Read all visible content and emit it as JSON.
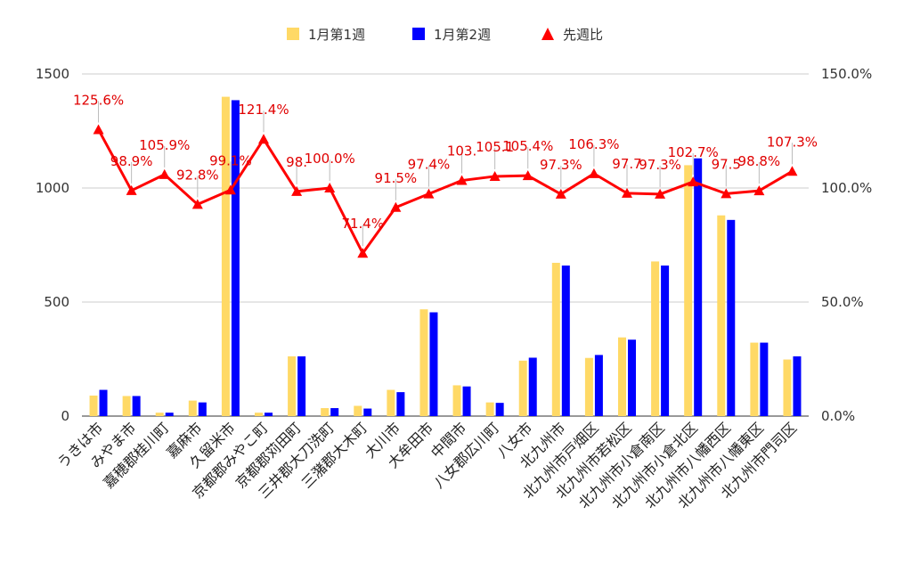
{
  "chart_data": {
    "type": "bar",
    "categories": [
      "うきは市",
      "みやま市",
      "嘉穂郡桂川町",
      "嘉麻市",
      "久留米市",
      "京都郡みやこ町",
      "京都郡苅田町",
      "三井郡大刀洗町",
      "三潴郡大木町",
      "大川市",
      "大牟田市",
      "中間市",
      "八女郡広川町",
      "八女市",
      "北九州市",
      "北九州市戸畑区",
      "北九州市若松区",
      "北九州市小倉南区",
      "北九州市小倉北区",
      "北九州市八幡西区",
      "北九州市八幡東区",
      "北九州市門司区"
    ],
    "series": [
      {
        "name": "1月第1週",
        "axis": "left",
        "kind": "bar",
        "color": "#ffd966",
        "values": [
          90,
          88,
          15,
          68,
          1400,
          15,
          262,
          35,
          45,
          115,
          468,
          135,
          60,
          243,
          672,
          255,
          345,
          678,
          1100,
          880,
          322,
          248
        ]
      },
      {
        "name": "1月第2週",
        "axis": "left",
        "kind": "bar",
        "color": "#0000ff",
        "values": [
          115,
          88,
          15,
          60,
          1385,
          15,
          262,
          35,
          33,
          105,
          455,
          130,
          58,
          256,
          660,
          268,
          335,
          660,
          1130,
          860,
          322,
          262
        ]
      },
      {
        "name": "先週比",
        "axis": "right",
        "kind": "line",
        "color": "#ff0000",
        "marker": "triangle",
        "values": [
          125.6,
          98.9,
          105.9,
          92.8,
          99.1,
          121.4,
          98.5,
          100.0,
          71.4,
          91.5,
          97.4,
          103.3,
          105.1,
          105.4,
          97.3,
          106.3,
          97.7,
          97.3,
          102.7,
          97.5,
          98.8,
          107.3
        ],
        "labels": [
          "125.6%",
          "98.9%",
          "105.9%",
          "92.8%",
          "99.1%",
          "121.4%",
          "98.",
          "100.0%",
          "71.4%",
          "91.5%",
          "97.4%",
          "103.",
          "105.1",
          "105.4%",
          "97.3%",
          "106.3%",
          "97.7",
          "97.3%",
          "102.7%",
          "97.5",
          "98.8%",
          "107.3%"
        ]
      }
    ],
    "y_left": {
      "lim": [
        0,
        1500
      ],
      "ticks": [
        "0",
        "500",
        "1000",
        "1500"
      ],
      "tick_values": [
        0,
        500,
        1000,
        1500
      ]
    },
    "y_right": {
      "lim": [
        0,
        150
      ],
      "ticks": [
        "0.0%",
        "50.0%",
        "100.0%",
        "150.0%"
      ],
      "tick_values": [
        0,
        50,
        100,
        150
      ]
    },
    "legend": {
      "position": "top",
      "items": [
        "1月第1週",
        "1月第2週",
        "先週比"
      ]
    },
    "grid": true,
    "title": "",
    "xlabel": "",
    "ylabel": ""
  }
}
